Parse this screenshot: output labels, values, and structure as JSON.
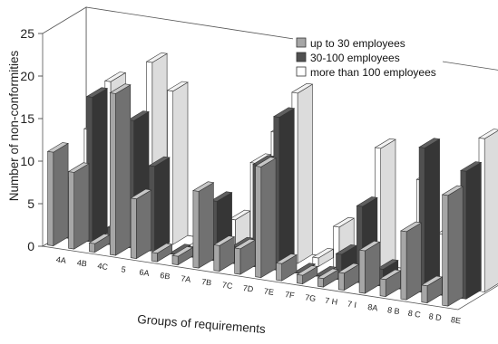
{
  "chart_data": {
    "type": "bar",
    "style": "3d-clustered",
    "xlabel": "Groups of requirements",
    "ylabel": "Number of non-conformities",
    "ylim": [
      0,
      25
    ],
    "yticks": [
      0,
      5,
      10,
      15,
      20,
      25
    ],
    "grid": false,
    "legend_position": "top-right",
    "categories": [
      "4A",
      "4B",
      "4C",
      "5",
      "6A",
      "6B",
      "7A",
      "7B",
      "7C",
      "7D",
      "7E",
      "7F",
      "7G",
      "7 H",
      "7 I",
      "8A",
      "8 B",
      "8 C",
      "8 D",
      "8E"
    ],
    "series": [
      {
        "name": "up to 30 employees",
        "color": "#a6a6a6",
        "values": [
          11,
          9,
          1,
          19,
          7,
          1,
          1,
          9,
          3,
          3,
          13,
          2,
          1,
          1,
          2,
          5,
          2,
          8,
          2,
          13
        ]
      },
      {
        "name": "30-100 employees",
        "color": "#505050",
        "values": [
          7,
          17,
          2,
          15,
          10,
          0,
          1,
          7,
          2,
          12,
          18,
          0,
          0,
          3,
          9,
          2,
          2,
          17,
          2,
          15
        ]
      },
      {
        "name": "more than 100 employees",
        "color": "#ffffff",
        "values": [
          12,
          18,
          1,
          21,
          18,
          0,
          3,
          4,
          11,
          15,
          20,
          1,
          5,
          1,
          15,
          0,
          12,
          6,
          0,
          18
        ]
      }
    ]
  }
}
